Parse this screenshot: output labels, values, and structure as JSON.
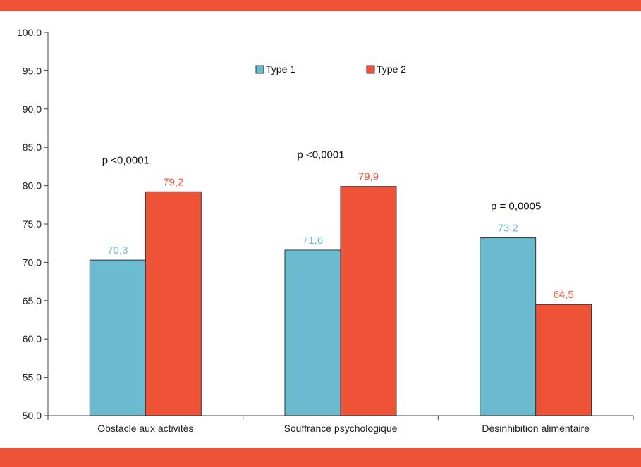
{
  "colors": {
    "band": "#ee5337",
    "series1": "#6bbbd0",
    "series2": "#ee5337",
    "axis": "#444444"
  },
  "chart_data": {
    "type": "bar",
    "categories": [
      "Obstacle aux activités",
      "Souffrance psychologique",
      "Désinhibition alimentaire"
    ],
    "series": [
      {
        "name": "Type 1",
        "values": [
          70.3,
          71.6,
          73.2
        ],
        "labels": [
          "70,3",
          "71,6",
          "73,2"
        ]
      },
      {
        "name": "Type 2",
        "values": [
          79.2,
          79.9,
          64.5
        ],
        "labels": [
          "79,2",
          "79,9",
          "64,5"
        ]
      }
    ],
    "annotations": [
      "p <0,0001",
      "p <0,0001",
      "p = 0,0005"
    ],
    "ylim": [
      50,
      100
    ],
    "yticks": [
      50,
      55,
      60,
      65,
      70,
      75,
      80,
      85,
      90,
      95,
      100
    ],
    "ytick_labels": [
      "50,0",
      "55,0",
      "60,0",
      "65,0",
      "70,0",
      "75,0",
      "80,0",
      "85,0",
      "90,0",
      "95,0",
      "100,0"
    ],
    "legend": "top-center",
    "grid": false
  }
}
